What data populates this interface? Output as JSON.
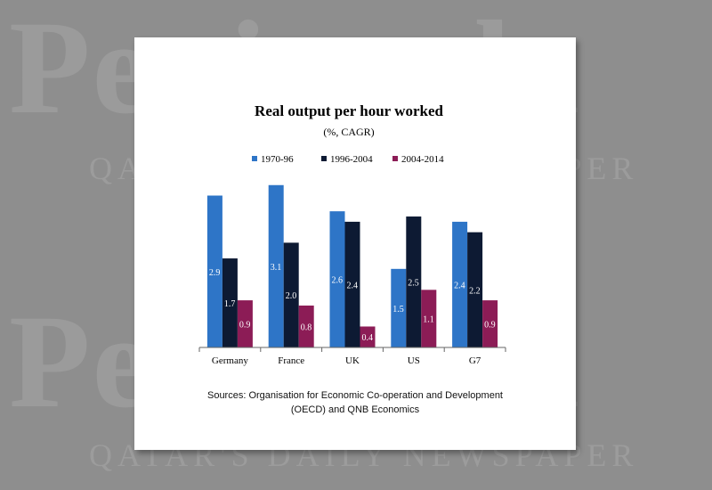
{
  "watermark": {
    "brand": "Peninsula",
    "tagline": "QATAR'S DAILY NEWSPAPER"
  },
  "chart_data": {
    "type": "bar",
    "title": "Real output per hour worked",
    "subtitle": "(%, CAGR)",
    "categories": [
      "Germany",
      "France",
      "UK",
      "US",
      "G7"
    ],
    "series": [
      {
        "name": "1970-96",
        "color": "#2e75c7",
        "values": [
          2.9,
          3.1,
          2.6,
          1.5,
          2.4
        ]
      },
      {
        "name": "1996-2004",
        "color": "#0d1a33",
        "values": [
          1.7,
          2.0,
          2.4,
          2.5,
          2.2
        ]
      },
      {
        "name": "2004-2014",
        "color": "#8c1c56",
        "values": [
          0.9,
          0.8,
          0.4,
          1.1,
          0.9
        ]
      }
    ],
    "ylim": [
      0,
      3.3
    ],
    "grid": false,
    "legend_position": "top"
  },
  "source_lines": [
    "Sources: Organisation for Economic Co-operation and Development",
    "(OECD) and QNB Economics"
  ]
}
